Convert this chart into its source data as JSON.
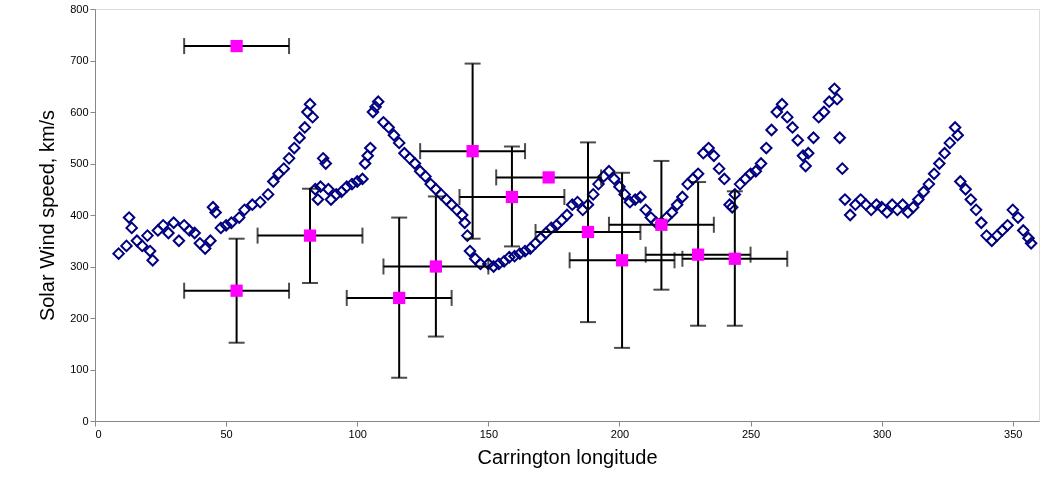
{
  "chart_data": {
    "type": "scatter",
    "xlabel": "Carrington longitude",
    "ylabel": "Solar Wind speed, km/s",
    "xlim": [
      0,
      360
    ],
    "xticks": [
      0,
      50,
      100,
      150,
      200,
      250,
      300,
      350
    ],
    "ylim": [
      0,
      800
    ],
    "yticks": [
      0,
      100,
      200,
      300,
      400,
      500,
      600,
      700,
      800
    ],
    "grid": false,
    "legend": false,
    "series": [
      {
        "color": "#000080",
        "marker": "diamond",
        "x": [
          9,
          12,
          13,
          14,
          16,
          18,
          20,
          21,
          22,
          24,
          26,
          28,
          30,
          32,
          34,
          36,
          38,
          40,
          42,
          44,
          45,
          46,
          48,
          50,
          52,
          55,
          57,
          60,
          63,
          66,
          68,
          70,
          72,
          74,
          76,
          78,
          80,
          81,
          82,
          83,
          84,
          85,
          86,
          87,
          88,
          89,
          90,
          92,
          94,
          96,
          98,
          100,
          102,
          103,
          104,
          105,
          106,
          107,
          108,
          110,
          112,
          114,
          116,
          118,
          120,
          122,
          124,
          126,
          128,
          130,
          132,
          134,
          136,
          138,
          140,
          141,
          142,
          143,
          145,
          147,
          150,
          152,
          154,
          156,
          158,
          160,
          162,
          164,
          166,
          168,
          170,
          172,
          174,
          176,
          178,
          180,
          182,
          184,
          186,
          188,
          190,
          192,
          194,
          196,
          198,
          200,
          202,
          204,
          206,
          208,
          210,
          212,
          214,
          216,
          218,
          220,
          222,
          224,
          226,
          228,
          230,
          232,
          234,
          236,
          238,
          240,
          242,
          243,
          244,
          246,
          248,
          250,
          252,
          254,
          256,
          258,
          260,
          262,
          264,
          266,
          268,
          270,
          271,
          272,
          274,
          276,
          278,
          280,
          282,
          283,
          284,
          285,
          286,
          288,
          290,
          292,
          294,
          296,
          298,
          300,
          302,
          304,
          306,
          308,
          310,
          312,
          314,
          316,
          318,
          320,
          322,
          324,
          326,
          328,
          329,
          330,
          332,
          334,
          336,
          338,
          340,
          342,
          344,
          346,
          348,
          350,
          352,
          354,
          356,
          357
        ],
        "values": [
          325,
          340,
          395,
          375,
          350,
          340,
          360,
          330,
          312,
          370,
          380,
          365,
          385,
          350,
          380,
          370,
          365,
          345,
          335,
          350,
          415,
          405,
          375,
          380,
          385,
          395,
          410,
          420,
          425,
          440,
          465,
          480,
          490,
          510,
          530,
          550,
          570,
          600,
          615,
          590,
          450,
          430,
          455,
          510,
          500,
          450,
          430,
          440,
          445,
          455,
          460,
          465,
          470,
          500,
          515,
          530,
          600,
          610,
          620,
          580,
          570,
          555,
          540,
          520,
          510,
          500,
          485,
          475,
          460,
          450,
          440,
          430,
          420,
          410,
          400,
          385,
          360,
          330,
          315,
          305,
          305,
          300,
          305,
          310,
          318,
          320,
          325,
          330,
          335,
          345,
          355,
          365,
          375,
          380,
          390,
          400,
          420,
          425,
          410,
          420,
          440,
          460,
          475,
          485,
          470,
          455,
          440,
          425,
          430,
          435,
          410,
          395,
          385,
          385,
          395,
          405,
          420,
          435,
          460,
          470,
          480,
          520,
          530,
          515,
          490,
          470,
          420,
          415,
          440,
          460,
          470,
          480,
          485,
          500,
          530,
          565,
          600,
          615,
          590,
          570,
          545,
          515,
          495,
          520,
          550,
          590,
          600,
          620,
          645,
          625,
          550,
          490,
          430,
          400,
          420,
          430,
          420,
          410,
          420,
          415,
          405,
          420,
          410,
          420,
          405,
          415,
          430,
          445,
          460,
          480,
          500,
          520,
          540,
          570,
          555,
          465,
          450,
          430,
          410,
          385,
          360,
          350,
          360,
          370,
          380,
          410,
          395,
          370,
          355,
          345
        ]
      },
      {
        "color": "#ff00ff",
        "marker": "square",
        "x": [
          54,
          54,
          82,
          116,
          130,
          144,
          159,
          173,
          188,
          201,
          216,
          230,
          244
        ],
        "values": [
          728,
          253,
          360,
          239,
          300,
          524,
          435,
          473,
          367,
          312,
          381,
          323,
          315
        ],
        "xerrors": [
          20,
          20,
          20,
          20,
          20,
          20,
          20,
          20,
          20,
          20,
          20,
          20,
          20
        ],
        "errors": [
          null,
          [
            152,
            354
          ],
          [
            268,
            451
          ],
          [
            84,
            395
          ],
          [
            164,
            436
          ],
          [
            354,
            694
          ],
          [
            339,
            533
          ],
          null,
          [
            192,
            541
          ],
          [
            142,
            482
          ],
          [
            255,
            505
          ],
          [
            185,
            464
          ],
          [
            185,
            446
          ]
        ]
      }
    ]
  }
}
